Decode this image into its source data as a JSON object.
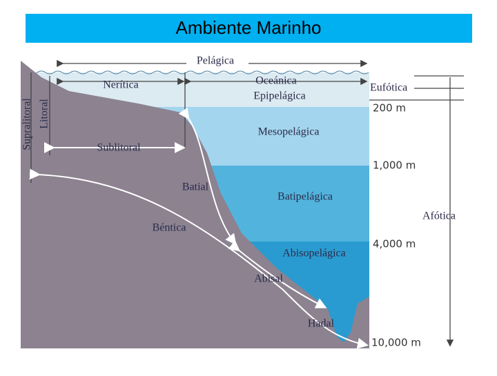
{
  "header": {
    "title": "Ambiente Marinho"
  },
  "zones": {
    "pelagica": "Pelágica",
    "neritica": "Nerítica",
    "oceanica": "Oceánica",
    "epipelagica": "Epipelágica",
    "mesopelagica": "Mesopelágica",
    "batipelagica": "Batipelágica",
    "abisopelagica": "Abisopelágica",
    "supralitoral": "Supralitoral",
    "litoral": "Litoral",
    "sublitoral": "Sublitoral",
    "batial": "Batial",
    "bentica": "Béntica",
    "abisal": "Abisal",
    "hadal": "Hadal",
    "eufotica": "Eufótica",
    "afotica": "Afótica"
  },
  "depths": [
    "200 m",
    "1,000 m",
    "4,000 m",
    "10,000 m"
  ]
}
